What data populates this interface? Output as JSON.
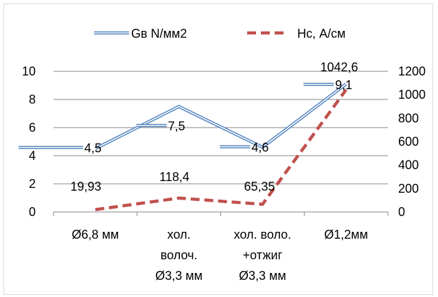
{
  "chart_data": {
    "type": "line",
    "categories": [
      [
        "Ø6,8 мм"
      ],
      [
        "хол.",
        "волоч.",
        "Ø3,3 мм"
      ],
      [
        "хол. воло.",
        "+отжиг",
        "Ø3,3 мм"
      ],
      [
        "Ø1,2мм"
      ]
    ],
    "series": [
      {
        "name": "Gв N/мм2",
        "axis": "left",
        "color": "#4f81bd",
        "style": "double-line",
        "values": [
          4.5,
          7.5,
          4.6,
          9.1
        ],
        "labels": [
          "4,5",
          "7,5",
          "4,6",
          "9,1"
        ]
      },
      {
        "name": "Hc, А/см",
        "axis": "right",
        "color": "#c0504d",
        "style": "dashed",
        "values": [
          19.93,
          118.4,
          65.35,
          1042.6
        ],
        "labels": [
          "19,93",
          "118,4",
          "65,35",
          "1042,6"
        ]
      }
    ],
    "y_left": {
      "min": 0,
      "max": 10,
      "step": 2,
      "ticks": [
        "0",
        "2",
        "4",
        "6",
        "8",
        "10"
      ]
    },
    "y_right": {
      "min": 0,
      "max": 1200,
      "step": 200,
      "ticks": [
        "0",
        "200",
        "400",
        "600",
        "800",
        "1000",
        "1200"
      ]
    },
    "grid": true,
    "legend_position": "top"
  }
}
